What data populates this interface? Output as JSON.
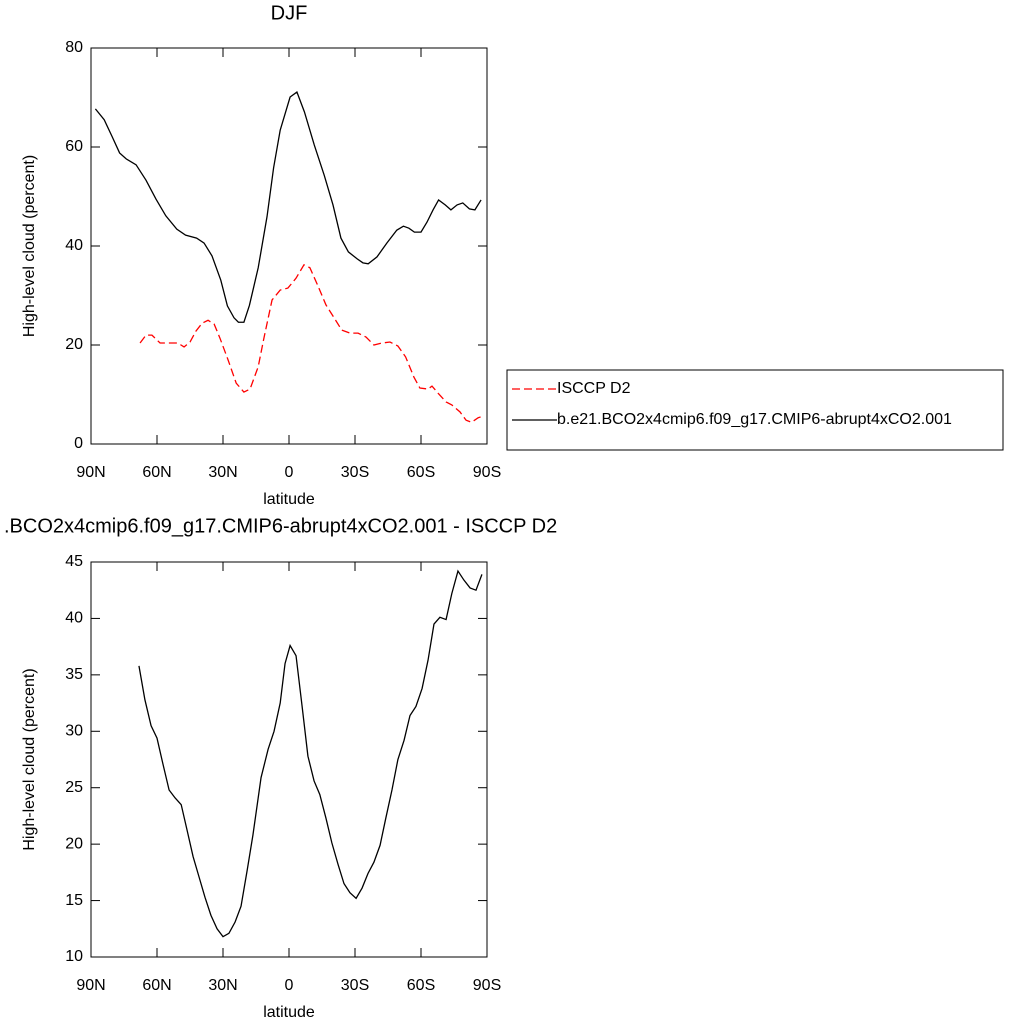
{
  "chart_data": [
    {
      "type": "line",
      "title": "DJF",
      "xlabel": "latitude",
      "ylabel": "High-level cloud (percent)",
      "xlim": [
        90,
        -90
      ],
      "xticks": [
        {
          "value": 90,
          "label": "90N"
        },
        {
          "value": 60,
          "label": "60N"
        },
        {
          "value": 30,
          "label": "30N"
        },
        0,
        {
          "value": -30,
          "label": "30S"
        },
        {
          "value": -60,
          "label": "60S"
        },
        {
          "value": -90,
          "label": "90S"
        }
      ],
      "ylim": [
        0,
        80
      ],
      "yticks": [
        0,
        20,
        40,
        60,
        80
      ],
      "legend": "outside-right",
      "series": [
        {
          "name": "ISCCP D2",
          "color": "#ff0000",
          "dashed": true,
          "x": [
            67.7,
            65,
            62.3,
            58.6,
            54,
            50.5,
            47.7,
            45,
            42.3,
            39.5,
            36.8,
            34,
            31.4,
            27.7,
            24,
            20.5,
            17.7,
            14,
            11.4,
            7.7,
            4,
            0.5,
            -3.2,
            -6.8,
            -9.5,
            -13,
            -16.8,
            -20.5,
            -24,
            -27.7,
            -31.4,
            -35,
            -38.6,
            -42.3,
            -45.9,
            -49.5,
            -53,
            -56.8,
            -59.5,
            -63.2,
            -65,
            -67.7,
            -71.4,
            -74,
            -77.7,
            -80.5,
            -83,
            -86,
            -88.6
          ],
          "values": [
            20.4,
            22,
            22,
            20.4,
            20.4,
            20.4,
            19.6,
            20.6,
            22.8,
            24.4,
            25,
            24.2,
            21.4,
            17,
            12.3,
            10.5,
            11.1,
            15.6,
            21.4,
            29.1,
            31.1,
            31.5,
            33.5,
            36.2,
            35.6,
            32.1,
            28.1,
            25.5,
            23,
            22.4,
            22.4,
            21.6,
            20,
            20.4,
            20.6,
            19.8,
            17.6,
            13.5,
            11.3,
            11.1,
            11.7,
            10.3,
            8.5,
            7.9,
            6.5,
            4.8,
            4.4,
            5.3,
            5.7
          ]
        },
        {
          "name": "b.e21.BCO2x4cmip6.f09_g17.CMIP6-abrupt4xCO2.001",
          "color": "#000000",
          "dashed": false,
          "x": [
            88,
            84,
            80.5,
            77,
            74,
            69.5,
            65,
            60.5,
            56,
            51,
            47,
            42,
            38.6,
            35,
            31,
            28,
            25,
            23,
            20.5,
            18,
            14,
            10,
            7,
            4,
            -0.5,
            -3.6,
            -7,
            -11.5,
            -16,
            -20,
            -23.6,
            -27,
            -31,
            -33.6,
            -36,
            -40,
            -44.5,
            -49,
            -52,
            -54.5,
            -57,
            -60,
            -62.7,
            -65.5,
            -68,
            -71,
            -73.6,
            -76.4,
            -79,
            -82,
            -84.5,
            -87.3
          ],
          "values": [
            67.7,
            65.5,
            62.2,
            58.8,
            57.6,
            56.4,
            53.3,
            49.5,
            46.1,
            43.4,
            42.2,
            41.6,
            40.6,
            38,
            33.1,
            27.9,
            25.5,
            24.6,
            24.6,
            28,
            35.6,
            45.9,
            55.8,
            63.4,
            70.1,
            71.1,
            67.1,
            60.4,
            54.3,
            48.3,
            41.6,
            38.8,
            37.4,
            36.6,
            36.4,
            37.8,
            40.6,
            43.2,
            44,
            43.6,
            42.8,
            42.8,
            44.8,
            47.3,
            49.3,
            48.3,
            47.3,
            48.3,
            48.7,
            47.5,
            47.3,
            49.3
          ]
        }
      ]
    },
    {
      "type": "line",
      "title": ".BCO2x4cmip6.f09_g17.CMIP6-abrupt4xCO2.001 - ISCCP D2",
      "xlabel": "latitude",
      "ylabel": "High-level cloud (percent)",
      "xlim": [
        90,
        -90
      ],
      "xticks": [
        {
          "value": 90,
          "label": "90N"
        },
        {
          "value": 60,
          "label": "60N"
        },
        {
          "value": 30,
          "label": "30N"
        },
        0,
        {
          "value": -30,
          "label": "30S"
        },
        {
          "value": -60,
          "label": "60S"
        },
        {
          "value": -90,
          "label": "90S"
        }
      ],
      "ylim": [
        10,
        45
      ],
      "yticks": [
        10,
        15,
        20,
        25,
        30,
        35,
        40,
        45
      ],
      "series": [
        {
          "color": "#000000",
          "dashed": false,
          "x": [
            68.2,
            65.5,
            62.7,
            60,
            57.3,
            54.5,
            51.8,
            49,
            46.4,
            43.6,
            40.9,
            38.2,
            35.5,
            32.7,
            30,
            27.3,
            24.5,
            21.8,
            19,
            16.4,
            12.7,
            9.5,
            6.8,
            4,
            1.8,
            -0.5,
            -3.2,
            -5.9,
            -8.6,
            -11.4,
            -14,
            -16.8,
            -19.5,
            -22.3,
            -25,
            -27.7,
            -30.5,
            -33.2,
            -35.9,
            -38.6,
            -41.4,
            -44,
            -46.8,
            -49.5,
            -52.3,
            -55,
            -57.7,
            -60.5,
            -63.2,
            -65.9,
            -68.6,
            -71.4,
            -74,
            -76.8,
            -79.5,
            -82.3,
            -85,
            -87.7
          ],
          "values": [
            35.8,
            32.8,
            30.5,
            29.4,
            27.1,
            24.8,
            24.1,
            23.5,
            21.3,
            18.9,
            17.1,
            15.3,
            13.7,
            12.5,
            11.8,
            12.1,
            13.1,
            14.5,
            17.7,
            20.8,
            25.9,
            28.4,
            30,
            32.5,
            36,
            37.6,
            36.7,
            32.3,
            27.8,
            25.6,
            24.4,
            22.3,
            20.1,
            18.2,
            16.5,
            15.7,
            15.2,
            16.1,
            17.4,
            18.4,
            19.9,
            22.3,
            24.8,
            27.5,
            29.2,
            31.4,
            32.2,
            33.8,
            36.3,
            39.5,
            40.1,
            39.9,
            42.2,
            44.2,
            43.4,
            42.7,
            42.5,
            43.9
          ]
        }
      ]
    }
  ]
}
